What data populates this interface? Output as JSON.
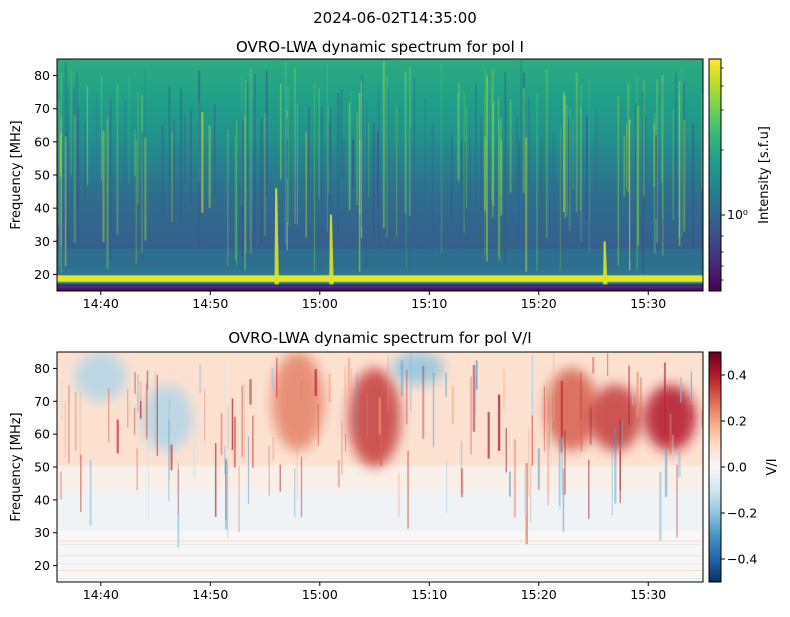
{
  "suptitle": "2024-06-02T14:35:00",
  "colors": {
    "viridis": [
      "#440154",
      "#482878",
      "#3e4a89",
      "#31688e",
      "#26828e",
      "#1f9e89",
      "#35b779",
      "#6ece58",
      "#b5de2b",
      "#fde725"
    ],
    "rdbu_r": [
      "#053061",
      "#2166ac",
      "#4393c3",
      "#92c5de",
      "#d1e5f0",
      "#f7f7f7",
      "#fddbc7",
      "#f4a582",
      "#d6604d",
      "#b2182b",
      "#67001f"
    ]
  },
  "chart_data": [
    {
      "type": "heatmap",
      "title": "OVRO-LWA dynamic spectrum for pol I",
      "xlabel": "",
      "ylabel": "Frequency [MHz]",
      "xlim": [
        "14:36",
        "15:35"
      ],
      "ylim": [
        15,
        85
      ],
      "xticks": [
        "14:40",
        "14:50",
        "15:00",
        "15:10",
        "15:20",
        "15:30"
      ],
      "yticks": [
        20,
        30,
        40,
        50,
        60,
        70,
        80
      ],
      "colormap": "viridis",
      "colorbar": {
        "label": "Intensity [s.f.u]",
        "scale": "log",
        "tick_labels": [
          "10⁰"
        ]
      },
      "features": {
        "band_bottom_mhz": [
          15,
          20
        ],
        "bright_band_mhz": [
          18,
          20
        ],
        "bursts": [
          {
            "time": "14:56",
            "freq_mhz": [
              17,
              46
            ]
          },
          {
            "time": "15:01",
            "freq_mhz": [
              17,
              38
            ]
          },
          {
            "time": "15:26",
            "freq_mhz": [
              17,
              30
            ]
          }
        ]
      }
    },
    {
      "type": "heatmap",
      "title": "OVRO-LWA dynamic spectrum for pol V/I",
      "xlabel": "",
      "ylabel": "Frequency [MHz]",
      "xlim": [
        "14:36",
        "15:35"
      ],
      "ylim": [
        15,
        85
      ],
      "xticks": [
        "14:40",
        "14:50",
        "15:00",
        "15:10",
        "15:20",
        "15:30"
      ],
      "yticks": [
        20,
        30,
        40,
        50,
        60,
        70,
        80
      ],
      "colormap": "RdBu_r",
      "colorbar": {
        "label": "V/I",
        "scale": "linear",
        "range": [
          -0.5,
          0.5
        ],
        "ticks": [
          -0.4,
          -0.2,
          0.0,
          0.2,
          0.4
        ],
        "tick_labels": [
          "−0.4",
          "−0.2",
          "0.0",
          "0.2",
          "0.4"
        ]
      },
      "features": {
        "positive_patches": [
          {
            "time": "14:58",
            "freq_mhz": [
              55,
              85
            ],
            "v_over_i": 0.25
          },
          {
            "time": "15:05",
            "freq_mhz": [
              50,
              80
            ],
            "v_over_i": 0.35
          },
          {
            "time": "15:23",
            "freq_mhz": [
              55,
              80
            ],
            "v_over_i": 0.3
          },
          {
            "time": "15:27",
            "freq_mhz": [
              55,
              75
            ],
            "v_over_i": 0.35
          },
          {
            "time": "15:32",
            "freq_mhz": [
              55,
              75
            ],
            "v_over_i": 0.4
          }
        ],
        "negative_patches": [
          {
            "time": "14:40",
            "freq_mhz": [
              70,
              85
            ],
            "v_over_i": -0.15
          },
          {
            "time": "14:46",
            "freq_mhz": [
              55,
              75
            ],
            "v_over_i": -0.15
          },
          {
            "time": "15:09",
            "freq_mhz": [
              75,
              85
            ],
            "v_over_i": -0.2
          }
        ]
      }
    }
  ]
}
